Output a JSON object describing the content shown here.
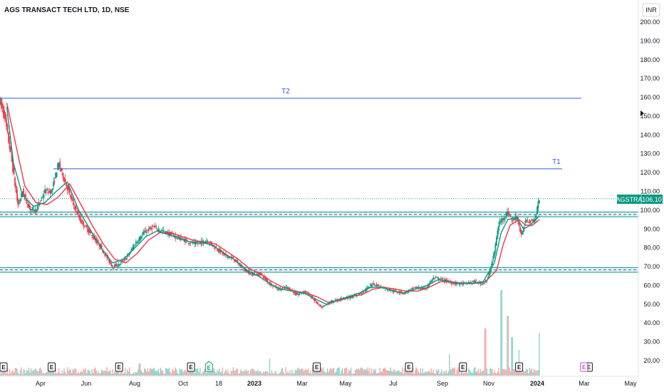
{
  "header": {
    "title": "AGS TRANSACT TECH LTD, 1D, NSE"
  },
  "currency_button": {
    "label": "INR"
  },
  "price_badge": {
    "symbol": "AGSTRA",
    "price": "106.10"
  },
  "lines": [
    {
      "label": "T2",
      "value": 159.5
    },
    {
      "label": "T1",
      "value": 122.0
    }
  ],
  "zones": [
    {
      "from": 96.5,
      "to": 99.0
    },
    {
      "from": 67.0,
      "to": 69.5
    }
  ],
  "colors": {
    "up": "#089981",
    "down": "#f23645",
    "ma_fast": "#089981",
    "ma_slow": "#f23645",
    "line": "#2a5bd7",
    "zone": "#089981",
    "badge": "#089981",
    "vol_up": "#8fd4c8",
    "vol_down": "#f7a9a7"
  },
  "earnings_icon": {
    "label": "E"
  },
  "earnings_months": [
    0,
    2.3,
    5.3,
    8.5,
    14.1,
    18.2,
    20.6,
    23.1,
    26.2
  ],
  "dividend_icon_month": 9.3,
  "future_earnings_month": 29.0,
  "chart_data": {
    "type": "candlestick",
    "title": "AGS TRANSACT TECH LTD, 1D, NSE",
    "x_ticks": [
      "Apr",
      "Jun",
      "Aug",
      "Oct",
      "18",
      "2023",
      "Mar",
      "May",
      "Jul",
      "Sep",
      "Nov",
      "2024",
      "Mar",
      "May"
    ],
    "y_ticks": [
      "200.00",
      "190.00",
      "180.00",
      "170.00",
      "160.00",
      "150.00",
      "140.00",
      "130.00",
      "120.00",
      "110.00",
      "100.00",
      "90.00",
      "80.00",
      "70.00",
      "60.00",
      "50.00",
      "40.00",
      "30.00",
      "20.00"
    ],
    "ylim": [
      20,
      200
    ],
    "last_price": 106.1,
    "price_path": [
      [
        0.0,
        158
      ],
      [
        0.2,
        150
      ],
      [
        0.5,
        128
      ],
      [
        0.8,
        102
      ],
      [
        1.0,
        110
      ],
      [
        1.3,
        101
      ],
      [
        1.6,
        100
      ],
      [
        2.0,
        110
      ],
      [
        2.3,
        110
      ],
      [
        2.6,
        125
      ],
      [
        2.9,
        115
      ],
      [
        3.2,
        105
      ],
      [
        3.6,
        94
      ],
      [
        4.0,
        88
      ],
      [
        4.5,
        80
      ],
      [
        5.0,
        70
      ],
      [
        5.3,
        71
      ],
      [
        5.7,
        76
      ],
      [
        6.0,
        82
      ],
      [
        6.4,
        88
      ],
      [
        6.8,
        91
      ],
      [
        7.2,
        89
      ],
      [
        7.6,
        87
      ],
      [
        8.0,
        85
      ],
      [
        8.4,
        83
      ],
      [
        8.8,
        82
      ],
      [
        9.2,
        84
      ],
      [
        9.6,
        80
      ],
      [
        10.0,
        76
      ],
      [
        10.4,
        74
      ],
      [
        10.8,
        69
      ],
      [
        11.2,
        66
      ],
      [
        11.6,
        66
      ],
      [
        12.0,
        61
      ],
      [
        12.4,
        58
      ],
      [
        12.8,
        59
      ],
      [
        13.2,
        55
      ],
      [
        13.6,
        57
      ],
      [
        14.0,
        52
      ],
      [
        14.3,
        48
      ],
      [
        14.7,
        51
      ],
      [
        15.2,
        53
      ],
      [
        15.7,
        54
      ],
      [
        16.2,
        57
      ],
      [
        16.6,
        61
      ],
      [
        17.0,
        59
      ],
      [
        17.5,
        57
      ],
      [
        18.0,
        56
      ],
      [
        18.5,
        59
      ],
      [
        18.9,
        58
      ],
      [
        19.3,
        64
      ],
      [
        19.7,
        63
      ],
      [
        20.2,
        61
      ],
      [
        20.7,
        61
      ],
      [
        21.1,
        62
      ],
      [
        21.4,
        61
      ],
      [
        21.7,
        63
      ],
      [
        22.0,
        78
      ],
      [
        22.2,
        93
      ],
      [
        22.4,
        96
      ],
      [
        22.6,
        99
      ],
      [
        22.8,
        94
      ],
      [
        23.0,
        97
      ],
      [
        23.2,
        86
      ],
      [
        23.4,
        95
      ],
      [
        23.6,
        94
      ],
      [
        23.8,
        95
      ],
      [
        24.0,
        106
      ]
    ],
    "ma_fast": [
      [
        0.3,
        155
      ],
      [
        0.6,
        125
      ],
      [
        1.0,
        108
      ],
      [
        1.5,
        102
      ],
      [
        2.0,
        104
      ],
      [
        2.5,
        110
      ],
      [
        3.0,
        115
      ],
      [
        3.5,
        100
      ],
      [
        4.0,
        90
      ],
      [
        4.5,
        80
      ],
      [
        5.0,
        72
      ],
      [
        5.5,
        74
      ],
      [
        6.0,
        80
      ],
      [
        6.5,
        86
      ],
      [
        7.0,
        89
      ],
      [
        7.5,
        87
      ],
      [
        8.0,
        85
      ],
      [
        8.5,
        83
      ],
      [
        9.0,
        83
      ],
      [
        9.5,
        81
      ],
      [
        10.0,
        77
      ],
      [
        10.5,
        73
      ],
      [
        11.0,
        68
      ],
      [
        11.5,
        65
      ],
      [
        12.0,
        61
      ],
      [
        12.5,
        58
      ],
      [
        13.0,
        57
      ],
      [
        13.5,
        56
      ],
      [
        14.0,
        53
      ],
      [
        14.5,
        50
      ],
      [
        15.0,
        52
      ],
      [
        15.5,
        54
      ],
      [
        16.0,
        56
      ],
      [
        16.5,
        59
      ],
      [
        17.0,
        59
      ],
      [
        17.5,
        57
      ],
      [
        18.0,
        56
      ],
      [
        18.5,
        58
      ],
      [
        19.0,
        60
      ],
      [
        19.5,
        63
      ],
      [
        20.0,
        62
      ],
      [
        20.5,
        61
      ],
      [
        21.0,
        61
      ],
      [
        21.5,
        62
      ],
      [
        22.0,
        72
      ],
      [
        22.3,
        88
      ],
      [
        22.6,
        95
      ],
      [
        23.0,
        96
      ],
      [
        23.3,
        90
      ],
      [
        23.6,
        92
      ],
      [
        24.0,
        97
      ]
    ],
    "ma_slow": [
      [
        0.3,
        157
      ],
      [
        0.7,
        135
      ],
      [
        1.1,
        113
      ],
      [
        1.6,
        104
      ],
      [
        2.1,
        103
      ],
      [
        2.6,
        107
      ],
      [
        3.1,
        114
      ],
      [
        3.6,
        103
      ],
      [
        4.1,
        92
      ],
      [
        4.6,
        82
      ],
      [
        5.1,
        74
      ],
      [
        5.6,
        72
      ],
      [
        6.1,
        77
      ],
      [
        6.6,
        84
      ],
      [
        7.1,
        88
      ],
      [
        7.6,
        88
      ],
      [
        8.1,
        86
      ],
      [
        8.6,
        84
      ],
      [
        9.1,
        83
      ],
      [
        9.6,
        82
      ],
      [
        10.1,
        78
      ],
      [
        10.6,
        74
      ],
      [
        11.1,
        69
      ],
      [
        11.6,
        66
      ],
      [
        12.1,
        62
      ],
      [
        12.6,
        59
      ],
      [
        13.1,
        57
      ],
      [
        13.6,
        56
      ],
      [
        14.1,
        54
      ],
      [
        14.6,
        51
      ],
      [
        15.1,
        52
      ],
      [
        15.6,
        54
      ],
      [
        16.1,
        55
      ],
      [
        16.6,
        58
      ],
      [
        17.1,
        59
      ],
      [
        17.6,
        58
      ],
      [
        18.1,
        57
      ],
      [
        18.6,
        57
      ],
      [
        19.1,
        59
      ],
      [
        19.6,
        62
      ],
      [
        20.1,
        62
      ],
      [
        20.6,
        61
      ],
      [
        21.1,
        61
      ],
      [
        21.6,
        62
      ],
      [
        22.1,
        68
      ],
      [
        22.4,
        82
      ],
      [
        22.7,
        92
      ],
      [
        23.1,
        95
      ],
      [
        23.4,
        92
      ],
      [
        23.7,
        92
      ],
      [
        24.0,
        95
      ]
    ],
    "volume_spikes": [
      [
        21.6,
        0.55
      ],
      [
        22.3,
        1.0
      ],
      [
        22.6,
        0.7
      ],
      [
        22.8,
        0.45
      ],
      [
        23.1,
        0.3
      ],
      [
        24.0,
        0.5
      ],
      [
        20.0,
        0.25
      ],
      [
        12.0,
        0.2
      ],
      [
        2.3,
        0.15
      ],
      [
        13.9,
        0.12
      ],
      [
        6.2,
        0.14
      ]
    ]
  }
}
